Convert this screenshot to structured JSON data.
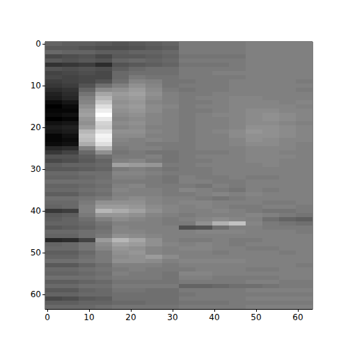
{
  "chart_data": {
    "type": "heatmap",
    "xlim": [
      -0.5,
      63.5
    ],
    "ylim": [
      63.5,
      -0.5
    ],
    "xticks": [
      0,
      10,
      20,
      30,
      40,
      50,
      60
    ],
    "yticks": [
      0,
      10,
      20,
      30,
      40,
      50,
      60
    ],
    "x_edges": [
      -0.5,
      3.5,
      7.5,
      11.5,
      15.5,
      19.5,
      23.5,
      27.5,
      31.5,
      35.5,
      39.5,
      43.5,
      47.5,
      51.5,
      55.5,
      59.5,
      63.5
    ],
    "y_edges": [
      -0.5,
      0.5,
      1.5,
      2.5,
      3.5,
      4.5,
      5.5,
      6.5,
      7.5,
      8.5,
      9.5,
      10.5,
      11.5,
      12.5,
      13.5,
      14.5,
      15.5,
      16.5,
      17.5,
      18.5,
      19.5,
      20.5,
      21.5,
      22.5,
      23.5,
      24.5,
      25.5,
      26.5,
      27.5,
      28.5,
      29.5,
      30.5,
      31.5,
      32.5,
      33.5,
      34.5,
      35.5,
      36.5,
      37.5,
      38.5,
      39.5,
      40.5,
      41.5,
      42.5,
      43.5,
      44.5,
      45.5,
      46.5,
      47.5,
      48.5,
      49.5,
      50.5,
      51.5,
      52.5,
      53.5,
      54.5,
      55.5,
      56.5,
      57.5,
      58.5,
      59.5,
      60.5,
      61.5,
      62.5,
      63.5
    ],
    "values": [
      [
        40,
        38,
        38,
        36,
        34,
        36,
        38,
        40,
        48,
        48,
        48,
        48,
        50,
        50,
        50,
        50
      ],
      [
        36,
        36,
        34,
        32,
        32,
        34,
        36,
        38,
        48,
        48,
        48,
        48,
        50,
        50,
        50,
        50
      ],
      [
        42,
        40,
        40,
        38,
        38,
        40,
        40,
        42,
        48,
        48,
        48,
        48,
        50,
        50,
        50,
        50
      ],
      [
        30,
        32,
        34,
        30,
        36,
        36,
        38,
        40,
        46,
        46,
        46,
        46,
        50,
        50,
        50,
        50
      ],
      [
        36,
        34,
        36,
        34,
        40,
        42,
        40,
        42,
        48,
        48,
        48,
        48,
        50,
        50,
        50,
        50
      ],
      [
        22,
        24,
        26,
        20,
        34,
        36,
        38,
        40,
        46,
        46,
        46,
        48,
        50,
        50,
        50,
        50
      ],
      [
        34,
        32,
        34,
        32,
        38,
        42,
        44,
        44,
        48,
        48,
        48,
        48,
        50,
        50,
        50,
        50
      ],
      [
        28,
        30,
        32,
        30,
        42,
        44,
        44,
        44,
        48,
        48,
        50,
        50,
        50,
        50,
        50,
        50
      ],
      [
        30,
        28,
        30,
        30,
        42,
        48,
        46,
        46,
        48,
        48,
        48,
        48,
        50,
        50,
        50,
        50
      ],
      [
        26,
        28,
        30,
        34,
        44,
        52,
        50,
        46,
        46,
        48,
        48,
        50,
        50,
        50,
        50,
        48
      ],
      [
        24,
        26,
        34,
        44,
        50,
        56,
        52,
        46,
        48,
        48,
        48,
        50,
        50,
        50,
        50,
        50
      ],
      [
        20,
        22,
        40,
        54,
        56,
        60,
        54,
        48,
        46,
        48,
        48,
        50,
        50,
        50,
        50,
        48
      ],
      [
        16,
        20,
        46,
        64,
        60,
        62,
        56,
        50,
        48,
        48,
        50,
        50,
        50,
        50,
        50,
        50
      ],
      [
        14,
        18,
        50,
        70,
        58,
        60,
        54,
        50,
        48,
        50,
        50,
        52,
        52,
        50,
        50,
        50
      ],
      [
        8,
        12,
        52,
        76,
        56,
        58,
        52,
        50,
        48,
        48,
        50,
        52,
        52,
        52,
        50,
        52
      ],
      [
        4,
        8,
        56,
        84,
        58,
        60,
        54,
        52,
        48,
        50,
        50,
        52,
        52,
        52,
        52,
        50
      ],
      [
        6,
        6,
        60,
        90,
        56,
        58,
        54,
        50,
        48,
        48,
        50,
        52,
        54,
        54,
        52,
        52
      ],
      [
        8,
        10,
        62,
        96,
        54,
        56,
        52,
        50,
        48,
        50,
        52,
        52,
        54,
        56,
        54,
        52
      ],
      [
        4,
        6,
        58,
        88,
        52,
        54,
        52,
        50,
        48,
        50,
        50,
        52,
        54,
        56,
        54,
        52
      ],
      [
        10,
        12,
        56,
        80,
        54,
        56,
        52,
        50,
        48,
        50,
        50,
        52,
        54,
        54,
        52,
        50
      ],
      [
        14,
        16,
        60,
        78,
        52,
        54,
        50,
        50,
        48,
        50,
        50,
        52,
        56,
        56,
        54,
        52
      ],
      [
        12,
        14,
        70,
        86,
        56,
        56,
        52,
        50,
        48,
        50,
        52,
        54,
        58,
        56,
        54,
        52
      ],
      [
        6,
        10,
        74,
        92,
        54,
        54,
        50,
        50,
        48,
        50,
        50,
        54,
        56,
        56,
        54,
        52
      ],
      [
        6,
        8,
        72,
        90,
        52,
        50,
        52,
        50,
        48,
        50,
        50,
        52,
        56,
        54,
        52,
        52
      ],
      [
        8,
        10,
        66,
        84,
        50,
        50,
        48,
        48,
        48,
        50,
        50,
        52,
        54,
        54,
        52,
        50
      ],
      [
        18,
        20,
        50,
        70,
        48,
        50,
        50,
        48,
        48,
        50,
        50,
        50,
        52,
        52,
        52,
        50
      ],
      [
        24,
        28,
        42,
        56,
        46,
        48,
        46,
        46,
        48,
        48,
        48,
        50,
        52,
        52,
        50,
        50
      ],
      [
        34,
        34,
        38,
        44,
        48,
        48,
        50,
        46,
        48,
        50,
        50,
        50,
        52,
        52,
        52,
        50
      ],
      [
        30,
        32,
        36,
        40,
        50,
        52,
        48,
        46,
        48,
        48,
        50,
        50,
        52,
        52,
        50,
        50
      ],
      [
        38,
        40,
        40,
        42,
        62,
        60,
        58,
        48,
        48,
        50,
        50,
        50,
        50,
        52,
        50,
        50
      ],
      [
        36,
        36,
        38,
        40,
        48,
        50,
        48,
        46,
        48,
        48,
        50,
        50,
        50,
        50,
        50,
        50
      ],
      [
        42,
        42,
        44,
        44,
        52,
        52,
        50,
        48,
        48,
        48,
        50,
        50,
        50,
        50,
        50,
        50
      ],
      [
        40,
        40,
        42,
        44,
        50,
        50,
        48,
        46,
        50,
        48,
        48,
        50,
        48,
        48,
        50,
        50
      ],
      [
        44,
        44,
        44,
        46,
        48,
        48,
        48,
        46,
        50,
        50,
        48,
        48,
        50,
        50,
        50,
        50
      ],
      [
        40,
        40,
        42,
        44,
        50,
        52,
        48,
        48,
        48,
        46,
        50,
        48,
        50,
        50,
        50,
        50
      ],
      [
        42,
        42,
        44,
        46,
        52,
        50,
        50,
        48,
        52,
        50,
        48,
        46,
        50,
        48,
        50,
        50
      ],
      [
        38,
        38,
        42,
        44,
        50,
        50,
        50,
        48,
        48,
        50,
        52,
        50,
        52,
        50,
        50,
        50
      ],
      [
        44,
        44,
        46,
        48,
        52,
        54,
        52,
        50,
        50,
        48,
        46,
        48,
        50,
        50,
        50,
        50
      ],
      [
        42,
        42,
        48,
        56,
        56,
        56,
        52,
        50,
        52,
        52,
        50,
        50,
        50,
        48,
        48,
        50
      ],
      [
        40,
        42,
        50,
        60,
        60,
        58,
        54,
        52,
        50,
        52,
        50,
        48,
        48,
        50,
        50,
        48
      ],
      [
        24,
        26,
        50,
        70,
        66,
        62,
        56,
        52,
        50,
        50,
        52,
        50,
        48,
        46,
        46,
        48
      ],
      [
        36,
        38,
        48,
        58,
        58,
        56,
        52,
        50,
        48,
        50,
        50,
        50,
        52,
        50,
        48,
        46
      ],
      [
        38,
        40,
        44,
        50,
        54,
        52,
        50,
        48,
        50,
        52,
        54,
        52,
        50,
        44,
        40,
        38
      ],
      [
        40,
        40,
        42,
        46,
        50,
        50,
        50,
        48,
        48,
        56,
        68,
        74,
        52,
        48,
        46,
        44
      ],
      [
        36,
        38,
        40,
        44,
        52,
        50,
        50,
        50,
        32,
        34,
        44,
        50,
        50,
        48,
        48,
        48
      ],
      [
        42,
        42,
        44,
        46,
        52,
        52,
        50,
        50,
        50,
        52,
        52,
        52,
        50,
        50,
        50,
        48
      ],
      [
        40,
        40,
        44,
        48,
        56,
        54,
        52,
        50,
        50,
        50,
        50,
        50,
        50,
        50,
        50,
        50
      ],
      [
        18,
        20,
        28,
        60,
        70,
        64,
        56,
        50,
        48,
        48,
        50,
        48,
        48,
        50,
        50,
        50
      ],
      [
        40,
        42,
        46,
        54,
        62,
        60,
        56,
        52,
        50,
        52,
        50,
        48,
        50,
        50,
        50,
        50
      ],
      [
        42,
        42,
        46,
        52,
        58,
        56,
        52,
        50,
        52,
        52,
        50,
        50,
        48,
        48,
        50,
        50
      ],
      [
        38,
        38,
        42,
        48,
        56,
        58,
        52,
        50,
        50,
        50,
        48,
        50,
        50,
        50,
        48,
        50
      ],
      [
        40,
        40,
        44,
        48,
        54,
        56,
        60,
        54,
        50,
        50,
        50,
        50,
        50,
        50,
        50,
        50
      ],
      [
        44,
        44,
        46,
        48,
        56,
        56,
        54,
        50,
        52,
        52,
        52,
        52,
        50,
        50,
        50,
        50
      ],
      [
        36,
        36,
        40,
        44,
        50,
        50,
        50,
        48,
        50,
        50,
        50,
        50,
        50,
        50,
        50,
        48
      ],
      [
        42,
        42,
        44,
        46,
        48,
        50,
        48,
        48,
        48,
        50,
        50,
        50,
        48,
        48,
        50,
        50
      ],
      [
        40,
        40,
        42,
        44,
        50,
        48,
        48,
        46,
        52,
        52,
        50,
        50,
        50,
        50,
        50,
        50
      ],
      [
        44,
        44,
        44,
        46,
        48,
        48,
        48,
        46,
        50,
        50,
        48,
        48,
        48,
        48,
        50,
        50
      ],
      [
        38,
        38,
        40,
        42,
        46,
        46,
        46,
        46,
        48,
        48,
        48,
        48,
        50,
        50,
        48,
        48
      ],
      [
        42,
        42,
        44,
        44,
        48,
        48,
        48,
        48,
        40,
        40,
        42,
        44,
        44,
        46,
        48,
        48
      ],
      [
        36,
        36,
        40,
        42,
        46,
        46,
        44,
        44,
        48,
        48,
        48,
        48,
        50,
        50,
        50,
        50
      ],
      [
        40,
        40,
        42,
        42,
        44,
        44,
        44,
        44,
        46,
        48,
        48,
        48,
        48,
        48,
        48,
        48
      ],
      [
        30,
        32,
        36,
        38,
        44,
        44,
        44,
        44,
        48,
        48,
        48,
        48,
        50,
        50,
        50,
        50
      ],
      [
        38,
        38,
        40,
        40,
        42,
        42,
        44,
        44,
        46,
        46,
        46,
        48,
        48,
        48,
        48,
        48
      ],
      [
        42,
        42,
        42,
        44,
        46,
        46,
        46,
        46,
        48,
        48,
        48,
        48,
        50,
        50,
        50,
        50
      ]
    ]
  }
}
